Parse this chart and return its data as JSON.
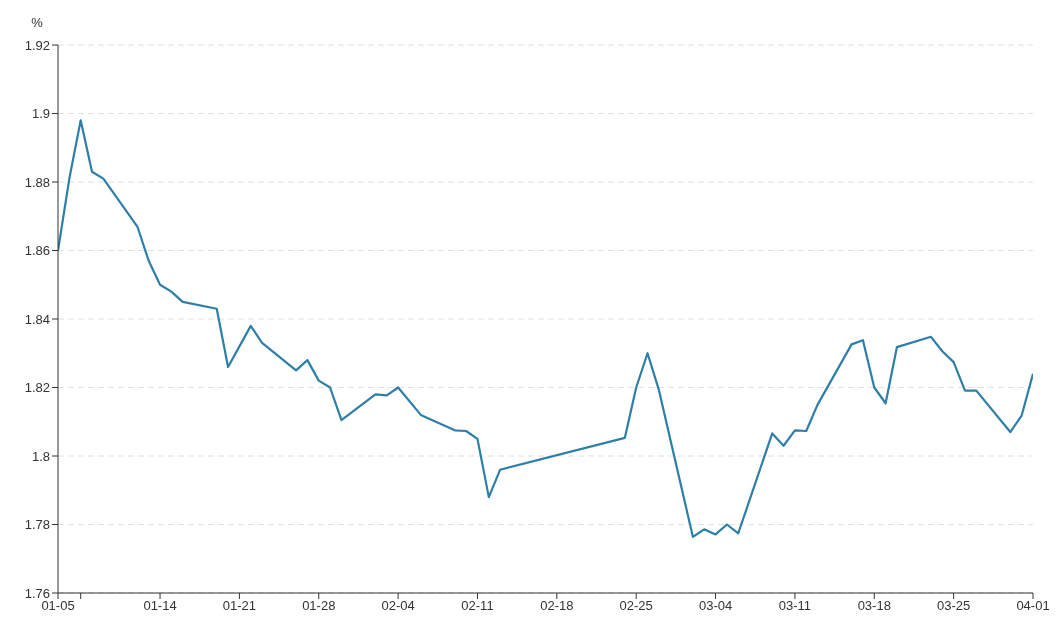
{
  "chart_data": {
    "type": "line",
    "ylabel": "%",
    "x": [
      "--01-05",
      "--01-06",
      "--01-07",
      "--01-08",
      "--01-09",
      "--01-12",
      "--01-13",
      "--01-14",
      "--01-15",
      "--01-16",
      "--01-19",
      "--01-20",
      "--01-22",
      "--01-23",
      "--01-26",
      "--01-27",
      "--01-28",
      "--01-29",
      "--01-30",
      "--02-02",
      "--02-03",
      "--02-04",
      "--02-06",
      "--02-09",
      "--02-10",
      "--02-11",
      "--02-12",
      "--02-13",
      "--02-24",
      "--02-25",
      "--02-26",
      "--02-27",
      "--03-02",
      "--03-03",
      "--03-04",
      "--03-05",
      "--03-06",
      "--03-09",
      "--03-10",
      "--03-11",
      "--03-12",
      "--03-13",
      "--03-16",
      "--03-17",
      "--03-18",
      "--03-19",
      "--03-20",
      "--03-23",
      "--03-24",
      "--03-25",
      "--03-26",
      "--03-27",
      "--03-30",
      "--03-31",
      "--04-01"
    ],
    "series": [
      {
        "color": "#2e7fa8",
        "values": [
          1.86,
          1.881,
          1.898,
          1.883,
          1.881,
          1.867,
          1.857,
          1.85,
          1.848,
          1.845,
          1.843,
          1.826,
          1.838,
          1.833,
          1.825,
          1.828,
          1.822,
          1.82,
          1.8105,
          1.818,
          1.8177,
          1.82,
          1.812,
          1.8075,
          1.8073,
          1.805,
          1.788,
          1.796,
          1.8053,
          1.82,
          1.83,
          1.8193,
          1.7764,
          1.7786,
          1.7771,
          1.78,
          1.7774,
          1.8066,
          1.803,
          1.8075,
          1.8073,
          1.815,
          1.8326,
          1.8338,
          1.82,
          1.8154,
          1.8318,
          1.8348,
          1.8306,
          1.8274,
          1.8191,
          1.8191,
          1.807,
          1.8118,
          1.824
        ]
      }
    ],
    "xlim": [
      "--01-05",
      "--04-01"
    ],
    "xticks": [
      {
        "value": "--01-05",
        "label": "01-05"
      },
      {
        "value": "--01-07",
        "label": null
      },
      {
        "value": "--01-14",
        "label": "01-14"
      },
      {
        "value": "--01-21",
        "label": "01-21"
      },
      {
        "value": "--01-28",
        "label": "01-28"
      },
      {
        "value": "--02-04",
        "label": "02-04"
      },
      {
        "value": "--02-11",
        "label": "02-11"
      },
      {
        "value": "--02-18",
        "label": "02-18"
      },
      {
        "value": "--02-25",
        "label": "02-25"
      },
      {
        "value": "--03-04",
        "label": "03-04"
      },
      {
        "value": "--03-11",
        "label": "03-11"
      },
      {
        "value": "--03-18",
        "label": "03-18"
      },
      {
        "value": "--03-25",
        "label": "03-25"
      },
      {
        "value": "--04-01",
        "label": "04-01"
      }
    ],
    "ylim": [
      1.76,
      1.92
    ],
    "yticks": [
      1.76,
      1.78,
      1.8,
      1.82,
      1.84,
      1.86,
      1.88,
      1.9,
      1.92
    ],
    "grid": "y"
  }
}
